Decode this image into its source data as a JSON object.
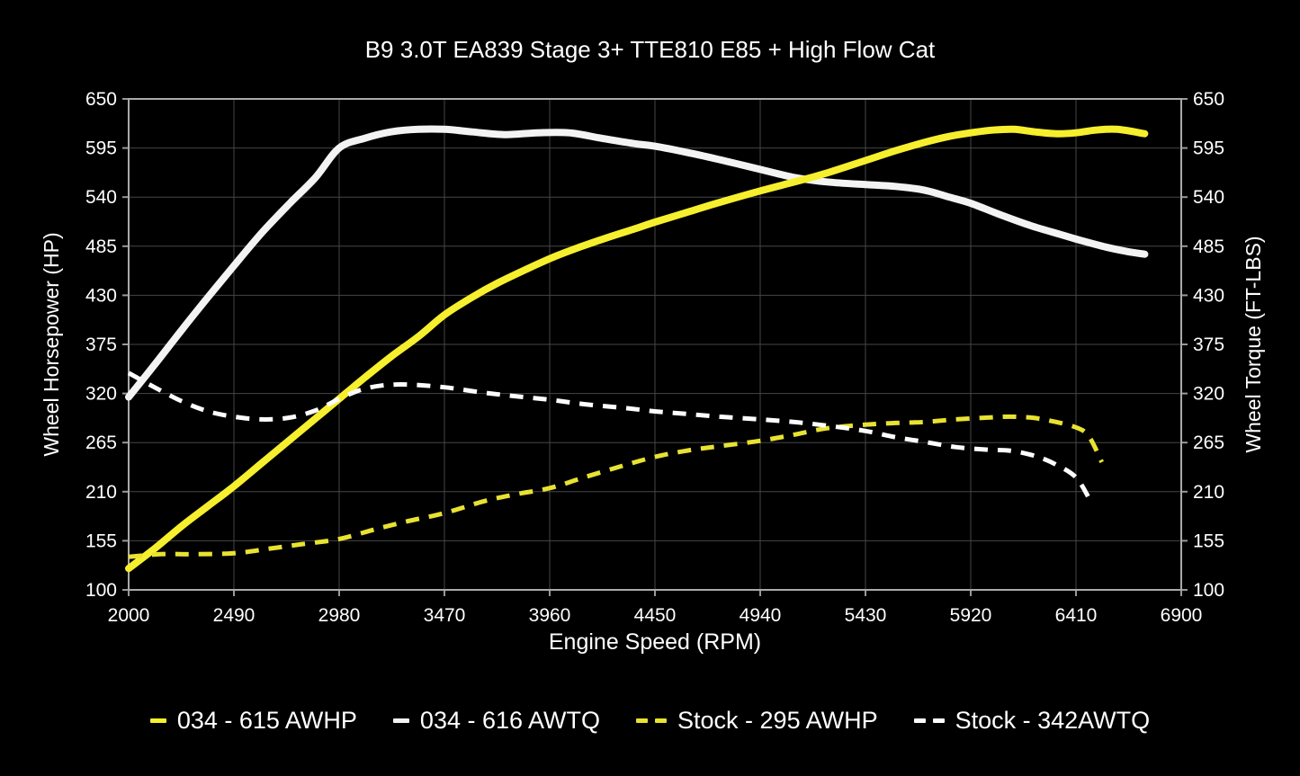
{
  "chart_data": {
    "type": "line",
    "title": "B9 3.0T EA839 Stage 3+ TTE810 E85 + High Flow Cat",
    "xlabel": "Engine Speed (RPM)",
    "ylabel_left": "Wheel Horsepower (HP)",
    "ylabel_right": "Wheel Torque (FT-LBS)",
    "xlim": [
      2000,
      6900
    ],
    "ylim": [
      100,
      650
    ],
    "xticks": [
      2000,
      2490,
      2980,
      3470,
      3960,
      4450,
      4940,
      5430,
      5920,
      6410,
      6900
    ],
    "yticks": [
      100,
      155,
      210,
      265,
      320,
      375,
      430,
      485,
      540,
      595,
      650
    ],
    "grid": true,
    "legend_position": "bottom",
    "colors": {
      "background": "#000000",
      "text": "#ffffff",
      "grid": "#464646",
      "border": "#aaaaaa"
    },
    "series": [
      {
        "name": "034 - 615 AWHP",
        "color": "#f6ef2d",
        "style": "solid",
        "width": 8,
        "points": [
          [
            2000,
            124
          ],
          [
            2120,
            146
          ],
          [
            2250,
            172
          ],
          [
            2370,
            194
          ],
          [
            2490,
            216
          ],
          [
            2620,
            242
          ],
          [
            2750,
            268
          ],
          [
            2870,
            292
          ],
          [
            2980,
            314
          ],
          [
            3100,
            338
          ],
          [
            3220,
            361
          ],
          [
            3350,
            384
          ],
          [
            3470,
            408
          ],
          [
            3600,
            428
          ],
          [
            3720,
            444
          ],
          [
            3850,
            459
          ],
          [
            3980,
            473
          ],
          [
            4100,
            484
          ],
          [
            4220,
            494
          ],
          [
            4350,
            504
          ],
          [
            4450,
            512
          ],
          [
            4600,
            523
          ],
          [
            4750,
            534
          ],
          [
            4940,
            547
          ],
          [
            5100,
            557
          ],
          [
            5250,
            567
          ],
          [
            5430,
            581
          ],
          [
            5570,
            592
          ],
          [
            5700,
            601
          ],
          [
            5820,
            608
          ],
          [
            5920,
            612
          ],
          [
            6020,
            615
          ],
          [
            6120,
            616
          ],
          [
            6220,
            613
          ],
          [
            6320,
            611
          ],
          [
            6410,
            612
          ],
          [
            6500,
            615
          ],
          [
            6600,
            616
          ],
          [
            6730,
            611
          ]
        ]
      },
      {
        "name": "034 - 616 AWTQ",
        "color": "#f3f3f3",
        "style": "solid",
        "width": 8,
        "points": [
          [
            2000,
            316
          ],
          [
            2120,
            352
          ],
          [
            2250,
            392
          ],
          [
            2370,
            428
          ],
          [
            2490,
            463
          ],
          [
            2620,
            500
          ],
          [
            2750,
            533
          ],
          [
            2870,
            562
          ],
          [
            2980,
            595
          ],
          [
            3100,
            606
          ],
          [
            3220,
            613
          ],
          [
            3350,
            616
          ],
          [
            3470,
            616
          ],
          [
            3600,
            613
          ],
          [
            3750,
            610
          ],
          [
            3900,
            612
          ],
          [
            4050,
            612
          ],
          [
            4200,
            606
          ],
          [
            4350,
            600
          ],
          [
            4450,
            597
          ],
          [
            4600,
            590
          ],
          [
            4750,
            582
          ],
          [
            4940,
            571
          ],
          [
            5100,
            562
          ],
          [
            5250,
            557
          ],
          [
            5430,
            554
          ],
          [
            5570,
            552
          ],
          [
            5700,
            548
          ],
          [
            5820,
            540
          ],
          [
            5920,
            533
          ],
          [
            6050,
            521
          ],
          [
            6200,
            508
          ],
          [
            6340,
            498
          ],
          [
            6410,
            493
          ],
          [
            6550,
            484
          ],
          [
            6650,
            479
          ],
          [
            6730,
            476
          ]
        ]
      },
      {
        "name": "Stock - 295 AWHP",
        "color": "#e8e232",
        "style": "dashed",
        "width": 5,
        "points": [
          [
            2000,
            137
          ],
          [
            2150,
            140
          ],
          [
            2300,
            140
          ],
          [
            2490,
            141
          ],
          [
            2650,
            146
          ],
          [
            2800,
            151
          ],
          [
            2980,
            157
          ],
          [
            3150,
            168
          ],
          [
            3300,
            177
          ],
          [
            3470,
            186
          ],
          [
            3650,
            199
          ],
          [
            3800,
            207
          ],
          [
            3960,
            214
          ],
          [
            4120,
            226
          ],
          [
            4300,
            239
          ],
          [
            4450,
            249
          ],
          [
            4600,
            256
          ],
          [
            4750,
            261
          ],
          [
            4940,
            267
          ],
          [
            5100,
            274
          ],
          [
            5250,
            281
          ],
          [
            5430,
            285
          ],
          [
            5570,
            287
          ],
          [
            5700,
            288
          ],
          [
            5850,
            291
          ],
          [
            6000,
            293
          ],
          [
            6100,
            294
          ],
          [
            6200,
            293
          ],
          [
            6300,
            289
          ],
          [
            6410,
            282
          ],
          [
            6470,
            272
          ],
          [
            6530,
            243
          ]
        ]
      },
      {
        "name": "Stock - 342AWTQ",
        "color": "#fdfdfd",
        "style": "dashed",
        "width": 5,
        "points": [
          [
            2000,
            343
          ],
          [
            2120,
            327
          ],
          [
            2250,
            311
          ],
          [
            2370,
            300
          ],
          [
            2490,
            294
          ],
          [
            2620,
            291
          ],
          [
            2750,
            293
          ],
          [
            2870,
            301
          ],
          [
            2980,
            314
          ],
          [
            3080,
            324
          ],
          [
            3180,
            329
          ],
          [
            3300,
            330
          ],
          [
            3470,
            327
          ],
          [
            3650,
            321
          ],
          [
            3800,
            317
          ],
          [
            3960,
            313
          ],
          [
            4120,
            308
          ],
          [
            4300,
            304
          ],
          [
            4450,
            300
          ],
          [
            4600,
            297
          ],
          [
            4750,
            294
          ],
          [
            4940,
            291
          ],
          [
            5100,
            288
          ],
          [
            5250,
            284
          ],
          [
            5430,
            278
          ],
          [
            5570,
            271
          ],
          [
            5700,
            266
          ],
          [
            5850,
            260
          ],
          [
            6000,
            257
          ],
          [
            6100,
            256
          ],
          [
            6220,
            250
          ],
          [
            6320,
            240
          ],
          [
            6410,
            226
          ],
          [
            6470,
            203
          ]
        ]
      }
    ]
  }
}
